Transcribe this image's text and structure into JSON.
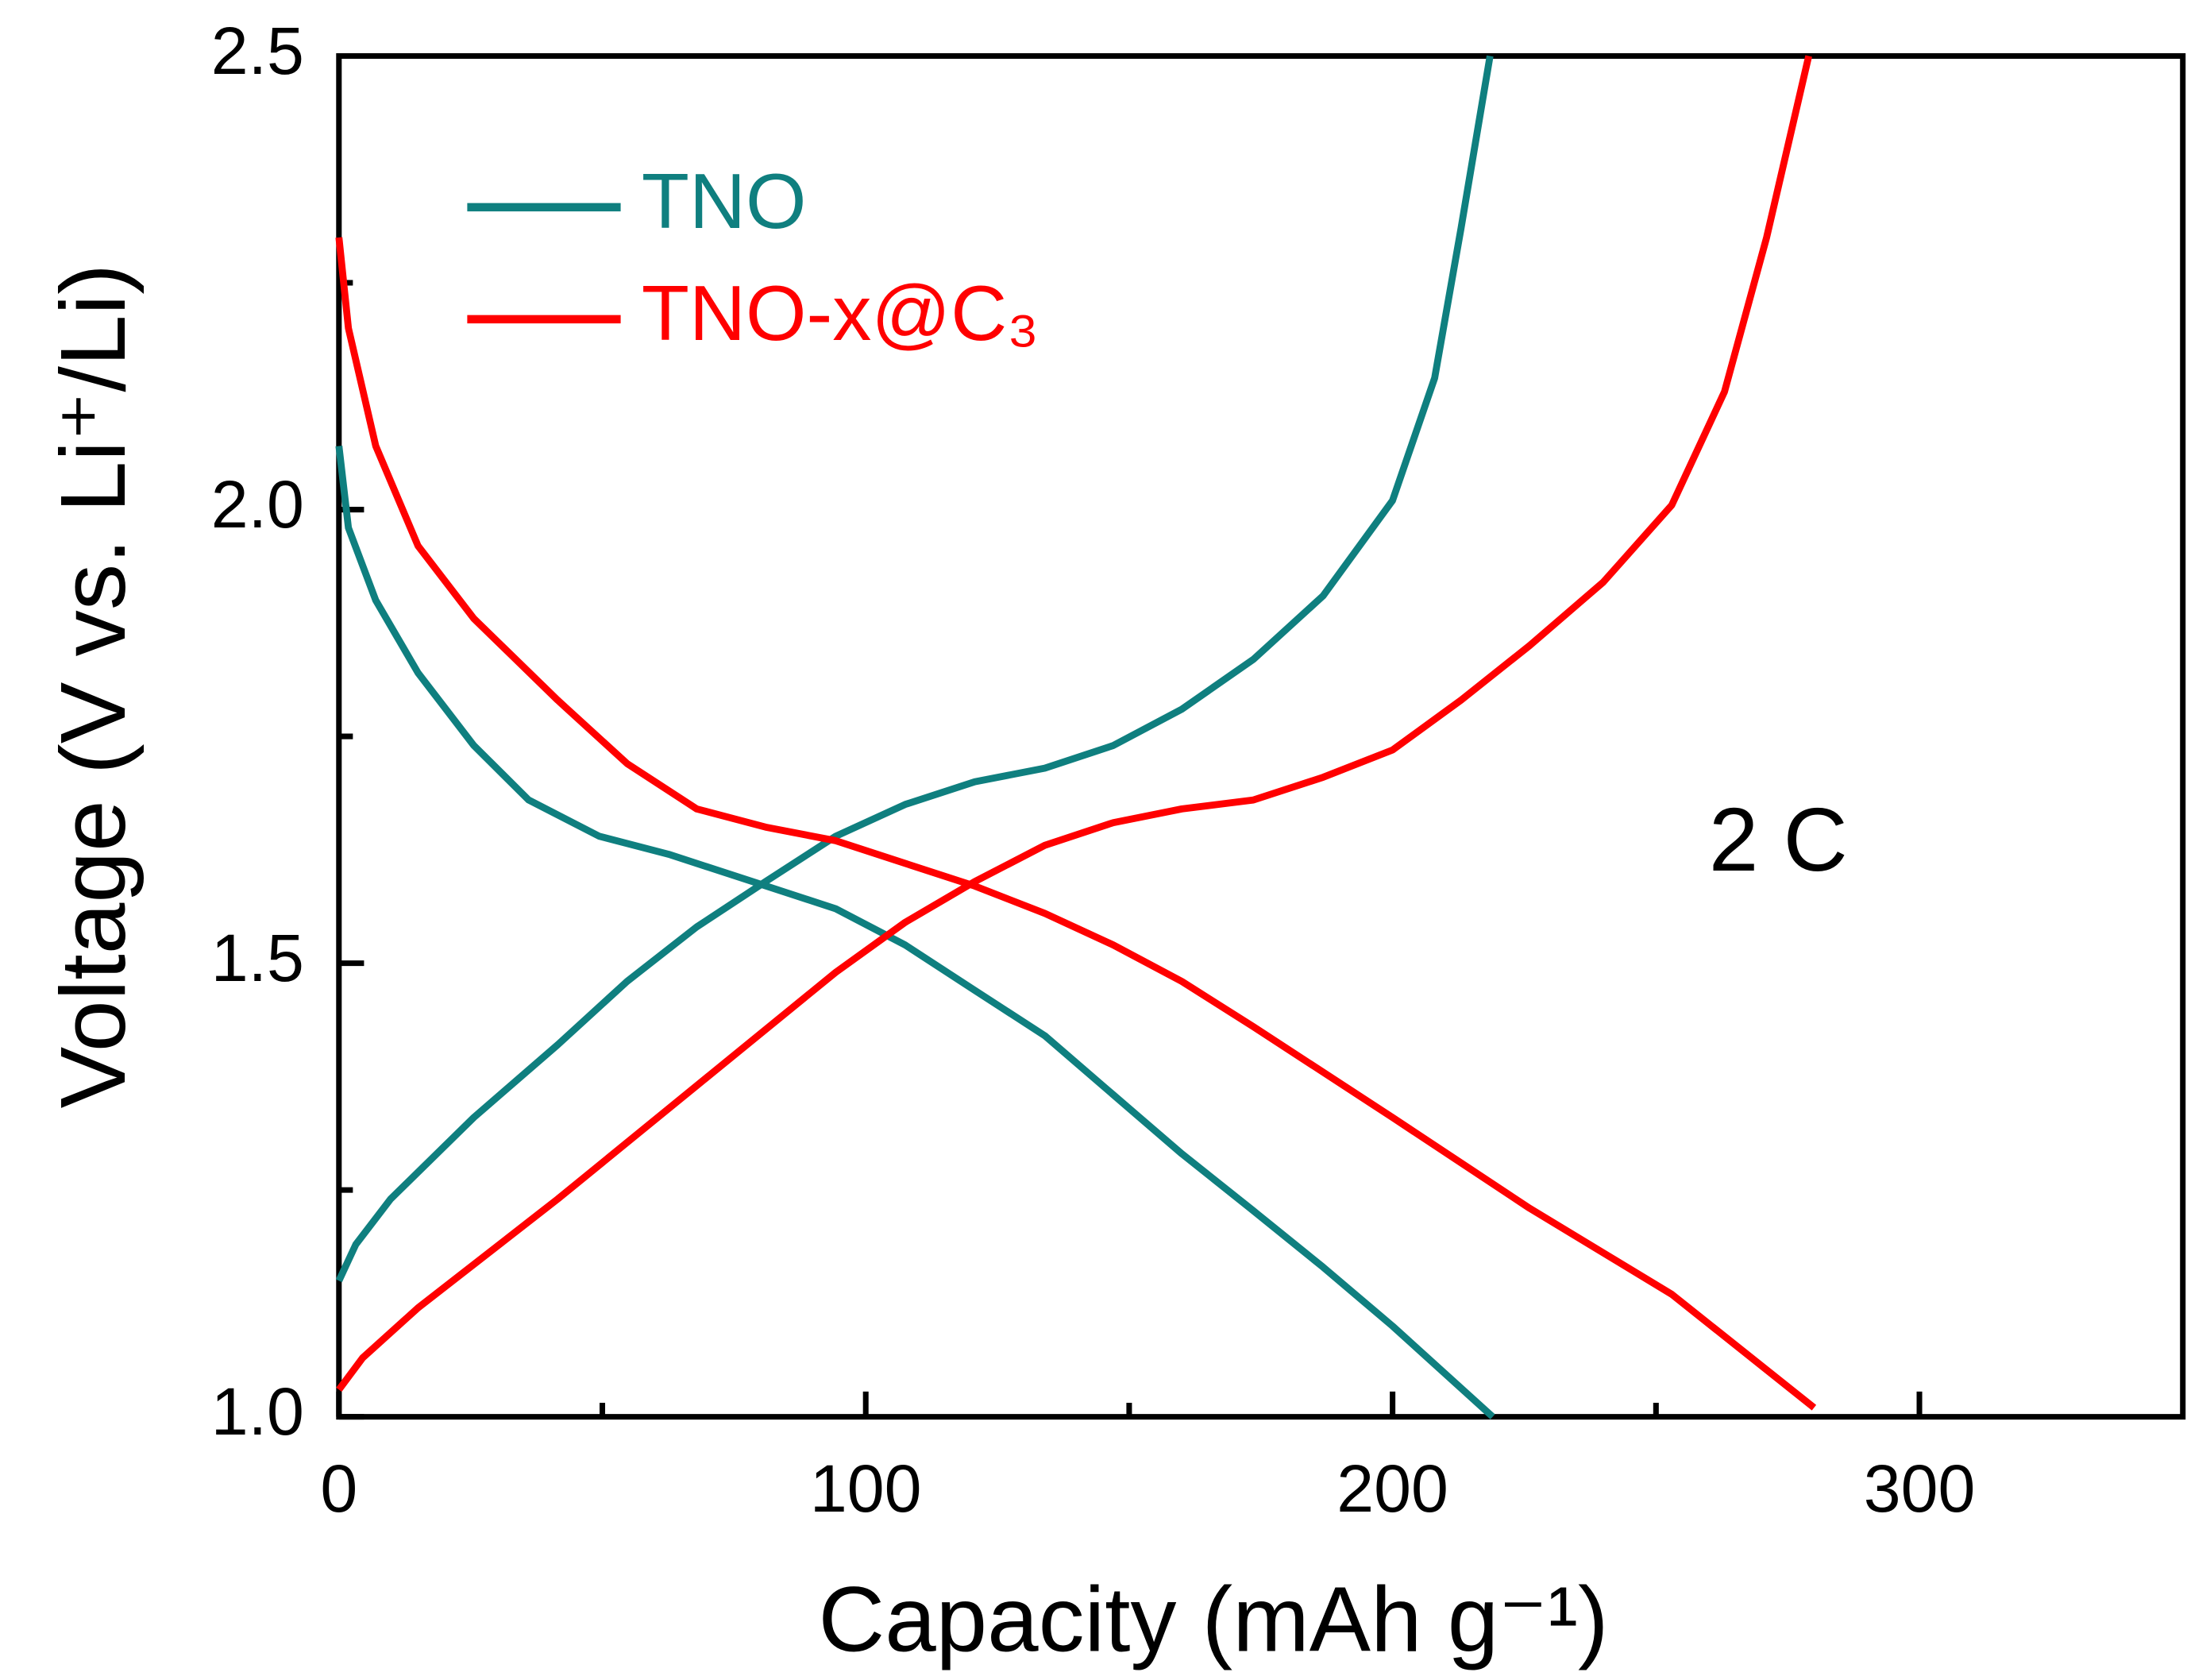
{
  "chart_data": {
    "type": "line",
    "xlabel": "Capacity (mAh g⁻¹)",
    "ylabel": "Voltage (V vs. Li⁺/Li)",
    "annotation": "2 C",
    "xlim": [
      0,
      350
    ],
    "ylim": [
      1,
      2.5
    ],
    "xticks": [
      0,
      100,
      200,
      300
    ],
    "xminor": [
      50,
      150,
      250
    ],
    "yticks": [
      {
        "value": 1,
        "label": "1.0"
      },
      {
        "value": 1.5,
        "label": "1.5"
      },
      {
        "value": 2,
        "label": "2.0"
      },
      {
        "value": 2.5,
        "label": "2.5"
      }
    ],
    "yminor": [
      1.25,
      1.75,
      2.25
    ],
    "grid": false,
    "legend": "upper left",
    "series": [
      {
        "name": "TNO",
        "color": "#0f7f7f",
        "x": [
          0,
          1.8,
          7,
          15,
          25.6,
          36,
          49.4,
          62.6,
          78.5,
          94.3,
          107.5,
          120.7,
          134,
          147,
          160,
          173.6,
          186.8,
          200,
          219,
          null,
          0,
          3.2,
          9.8,
          25.6,
          41.5,
          54.7,
          67.9,
          81,
          94.3,
          107.5,
          120.7,
          134,
          147,
          160,
          173.6,
          186.8,
          200,
          208,
          213,
          218.5
        ],
        "values": [
          2.07,
          1.98,
          1.9,
          1.82,
          1.74,
          1.68,
          1.64,
          1.62,
          1.59,
          1.56,
          1.52,
          1.47,
          1.42,
          1.355,
          1.29,
          1.227,
          1.165,
          1.1,
          1.0,
          null,
          1.15,
          1.19,
          1.24,
          1.33,
          1.41,
          1.48,
          1.54,
          1.59,
          1.64,
          1.675,
          1.7,
          1.715,
          1.74,
          1.78,
          1.835,
          1.905,
          2.01,
          2.145,
          2.31,
          2.5
        ]
      },
      {
        "name": "TNO-x@C₃",
        "color": "#ff0000",
        "x": [
          0,
          1.8,
          7,
          15,
          25.6,
          41.5,
          54.7,
          67.9,
          81,
          94.3,
          107.5,
          120.7,
          134,
          147,
          160,
          173.6,
          200,
          226,
          253,
          280,
          null,
          0,
          4.5,
          15,
          41.5,
          67.9,
          94.3,
          107.5,
          120.7,
          134,
          147,
          160,
          173.6,
          186.8,
          200,
          213,
          226,
          240,
          253,
          263,
          271,
          279
        ],
        "values": [
          2.3,
          2.2,
          2.07,
          1.96,
          1.88,
          1.79,
          1.72,
          1.67,
          1.65,
          1.635,
          1.61,
          1.585,
          1.555,
          1.52,
          1.48,
          1.43,
          1.33,
          1.23,
          1.135,
          1.01,
          null,
          1.03,
          1.065,
          1.12,
          1.24,
          1.365,
          1.49,
          1.545,
          1.59,
          1.63,
          1.655,
          1.67,
          1.68,
          1.705,
          1.735,
          1.79,
          1.85,
          1.92,
          2.005,
          2.13,
          2.3,
          2.5
        ]
      }
    ]
  }
}
